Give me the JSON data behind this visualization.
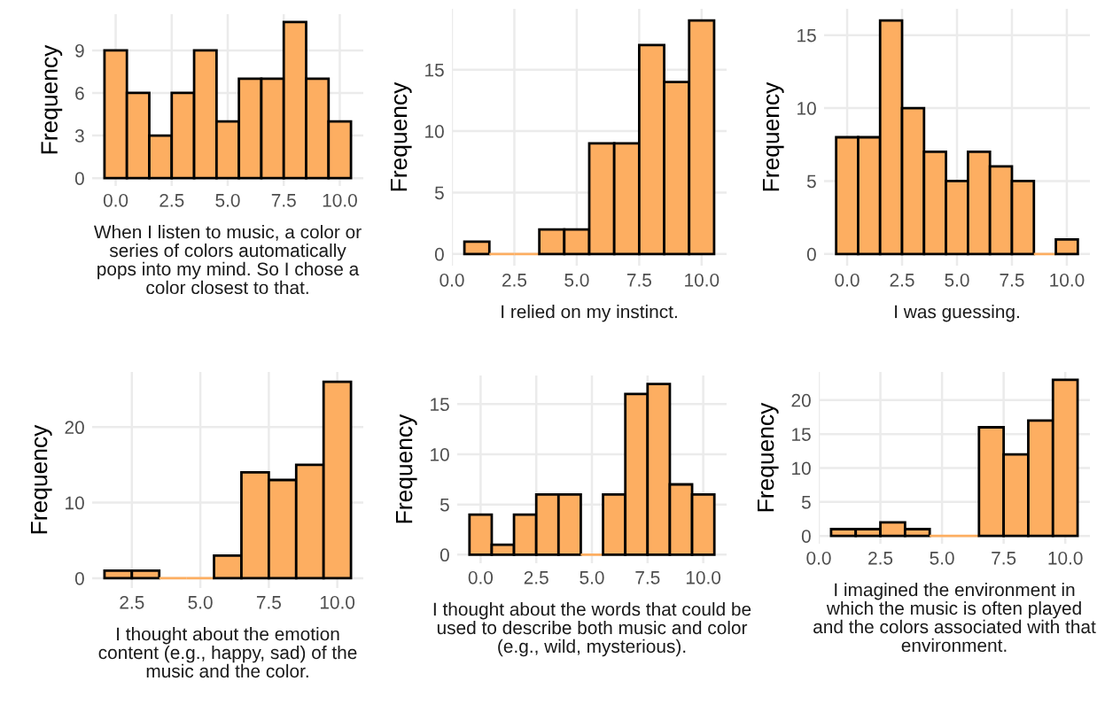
{
  "chart_data": [
    {
      "type": "histogram",
      "xlabel": "When I listen to music, a color or series of colors automatically pops into my mind. So I chose a color closest to that.",
      "ylabel": "Frequency",
      "bins": [
        -0.5,
        0.5,
        1.5,
        2.5,
        3.5,
        4.5,
        5.5,
        6.5,
        7.5,
        8.5,
        9.5,
        10.5
      ],
      "values": [
        9,
        6,
        3,
        6,
        9,
        4,
        7,
        7,
        11,
        7,
        4
      ],
      "color": "#fdae61",
      "xlim": [
        -1.05,
        11.05
      ],
      "xticks": [
        {
          "value": 0,
          "label": "0.0"
        },
        {
          "value": 2.5,
          "label": "2.5"
        },
        {
          "value": 5,
          "label": "5.0"
        },
        {
          "value": 7.5,
          "label": "7.5"
        },
        {
          "value": 10,
          "label": "10.0"
        }
      ],
      "ylim": [
        -0.55,
        11.55
      ],
      "yticks": [
        0,
        3,
        6,
        9
      ],
      "grid": true
    },
    {
      "type": "histogram",
      "xlabel": "I relied on my instinct.",
      "ylabel": "Frequency",
      "bins": [
        0.5,
        1.5,
        2.5,
        3.5,
        4.5,
        5.5,
        6.5,
        7.5,
        8.5,
        9.5,
        10.5
      ],
      "values": [
        1,
        0,
        0,
        2,
        2,
        9,
        9,
        17,
        14,
        19
      ],
      "color": "#fdae61",
      "xlim": [
        0,
        11
      ],
      "xticks": [
        {
          "value": 0,
          "label": "0.0"
        },
        {
          "value": 2.5,
          "label": "2.5"
        },
        {
          "value": 5,
          "label": "5.0"
        },
        {
          "value": 7.5,
          "label": "7.5"
        },
        {
          "value": 10,
          "label": "10.0"
        }
      ],
      "ylim": [
        -0.95,
        19.95
      ],
      "yticks": [
        0,
        5,
        10,
        15
      ],
      "grid": true
    },
    {
      "type": "histogram",
      "xlabel": "I was guessing.",
      "ylabel": "Frequency",
      "bins": [
        -0.5,
        0.5,
        1.5,
        2.5,
        3.5,
        4.5,
        5.5,
        6.5,
        7.5,
        8.5,
        9.5,
        10.5
      ],
      "values": [
        8,
        8,
        16,
        10,
        7,
        5,
        7,
        6,
        5,
        0,
        1
      ],
      "color": "#fdae61",
      "xlim": [
        -1.05,
        11.05
      ],
      "xticks": [
        {
          "value": 0,
          "label": "0.0"
        },
        {
          "value": 2.5,
          "label": "2.5"
        },
        {
          "value": 5,
          "label": "5.0"
        },
        {
          "value": 7.5,
          "label": "7.5"
        },
        {
          "value": 10,
          "label": "10.0"
        }
      ],
      "ylim": [
        -0.8,
        16.8
      ],
      "yticks": [
        0,
        5,
        10,
        15
      ],
      "grid": true
    },
    {
      "type": "histogram",
      "xlabel": "I thought about the emotion content (e.g., happy, sad) of the music and the color.",
      "ylabel": "Frequency",
      "bins": [
        1.5,
        2.5,
        3.5,
        4.5,
        5.5,
        6.5,
        7.5,
        8.5,
        9.5,
        10.5
      ],
      "values": [
        1,
        1,
        0,
        0,
        3,
        14,
        13,
        15,
        26
      ],
      "color": "#fdae61",
      "xlim": [
        1.05,
        10.95
      ],
      "xticks": [
        {
          "value": 2.5,
          "label": "2.5"
        },
        {
          "value": 5,
          "label": "5.0"
        },
        {
          "value": 7.5,
          "label": "7.5"
        },
        {
          "value": 10,
          "label": "10.0"
        }
      ],
      "ylim": [
        -1.3,
        27.3
      ],
      "yticks": [
        0,
        10,
        20
      ],
      "grid": true
    },
    {
      "type": "histogram",
      "xlabel": "I thought about the words that could be used to describe both music and color (e.g., wild, mysterious).",
      "ylabel": "Frequency",
      "bins": [
        -0.5,
        0.5,
        1.5,
        2.5,
        3.5,
        4.5,
        5.5,
        6.5,
        7.5,
        8.5,
        9.5,
        10.5
      ],
      "values": [
        4,
        1,
        4,
        6,
        6,
        0,
        6,
        16,
        17,
        7,
        6
      ],
      "color": "#fdae61",
      "xlim": [
        -1.05,
        11.05
      ],
      "xticks": [
        {
          "value": 0,
          "label": "0.0"
        },
        {
          "value": 2.5,
          "label": "2.5"
        },
        {
          "value": 5,
          "label": "5.0"
        },
        {
          "value": 7.5,
          "label": "7.5"
        },
        {
          "value": 10,
          "label": "10.0"
        }
      ],
      "ylim": [
        -0.85,
        17.85
      ],
      "yticks": [
        0,
        5,
        10,
        15
      ],
      "grid": true
    },
    {
      "type": "histogram",
      "xlabel": "I imagined the environment in which the music is often played and the colors associated with that environment.",
      "ylabel": "Frequency",
      "bins": [
        0.5,
        1.5,
        2.5,
        3.5,
        4.5,
        5.5,
        6.5,
        7.5,
        8.5,
        9.5,
        10.5
      ],
      "values": [
        1,
        1,
        2,
        1,
        0,
        0,
        16,
        12,
        17,
        23
      ],
      "color": "#fdae61",
      "xlim": [
        0,
        11
      ],
      "xticks": [
        {
          "value": 0,
          "label": "0.0"
        },
        {
          "value": 2.5,
          "label": "2.5"
        },
        {
          "value": 5,
          "label": "5.0"
        },
        {
          "value": 7.5,
          "label": "7.5"
        },
        {
          "value": 10,
          "label": "10.0"
        }
      ],
      "ylim": [
        -1.15,
        24.15
      ],
      "yticks": [
        0,
        5,
        10,
        15,
        20
      ],
      "grid": true
    }
  ]
}
